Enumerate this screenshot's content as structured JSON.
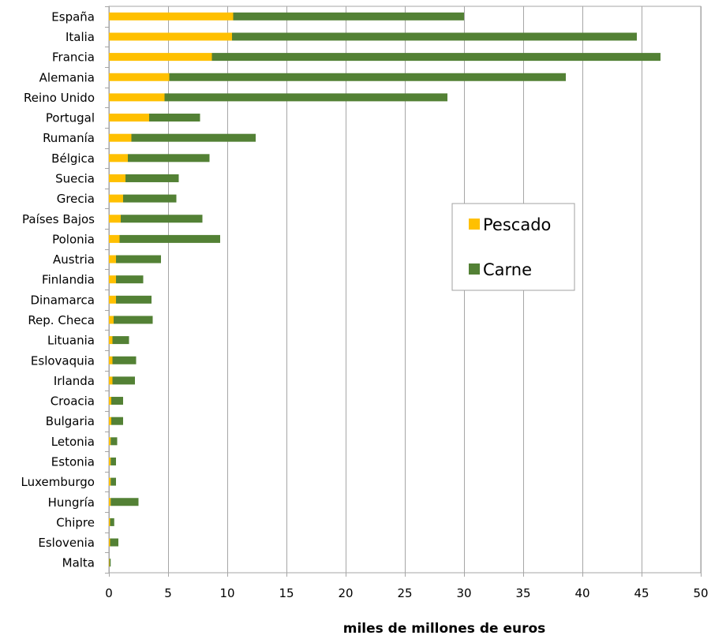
{
  "chart_data": {
    "type": "bar",
    "orientation": "horizontal",
    "stacked": true,
    "title": "",
    "xlabel": "miles de millones de  euros",
    "ylabel": "",
    "xlim": [
      0,
      50
    ],
    "x_ticks": [
      0,
      5,
      10,
      15,
      20,
      25,
      30,
      35,
      40,
      45,
      50
    ],
    "grid": true,
    "legend_position": "right-middle",
    "categories": [
      "España",
      "Italia",
      "Francia",
      "Alemania",
      "Reino Unido",
      "Portugal",
      "Rumanía",
      "Bélgica",
      "Suecia",
      "Grecia",
      "Países Bajos",
      "Polonia",
      "Austria",
      "Finlandia",
      "Dinamarca",
      "Rep. Checa",
      "Lituania",
      "Eslovaquia",
      "Irlanda",
      "Croacia",
      "Bulgaria",
      "Letonia",
      "Estonia",
      "Luxemburgo",
      "Hungría",
      "Chipre",
      "Eslovenia",
      "Malta"
    ],
    "series": [
      {
        "name": "Pescado",
        "color": "#FFC000",
        "values": [
          10.5,
          10.4,
          8.7,
          5.1,
          4.7,
          3.4,
          1.9,
          1.6,
          1.4,
          1.2,
          1.0,
          0.9,
          0.6,
          0.6,
          0.6,
          0.4,
          0.3,
          0.3,
          0.3,
          0.2,
          0.2,
          0.15,
          0.15,
          0.15,
          0.15,
          0.1,
          0.1,
          0.05
        ]
      },
      {
        "name": "Carne",
        "color": "#538135",
        "values": [
          19.5,
          34.2,
          37.9,
          33.5,
          23.9,
          4.3,
          10.5,
          6.9,
          4.5,
          4.5,
          6.9,
          8.5,
          3.8,
          2.3,
          3.0,
          3.3,
          1.4,
          2.0,
          1.9,
          1.0,
          1.0,
          0.55,
          0.45,
          0.45,
          2.35,
          0.35,
          0.7,
          0.1
        ]
      }
    ]
  }
}
